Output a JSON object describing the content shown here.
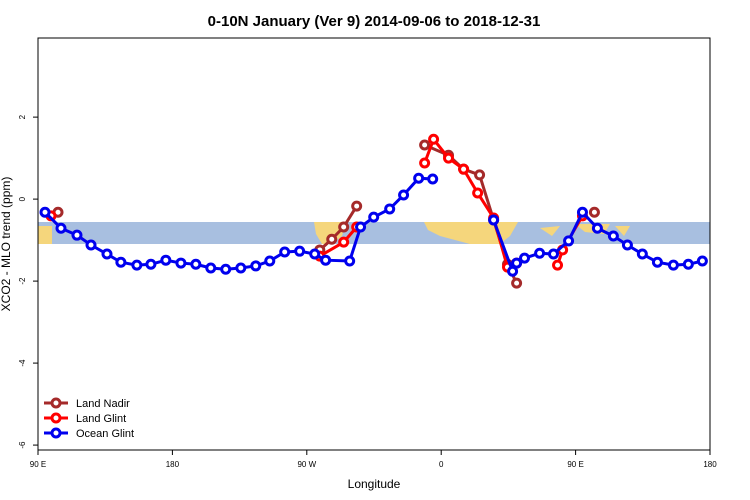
{
  "chart_data": {
    "type": "line",
    "title": "0-10N January (Ver 9)   2014-09-06 to 2018-12-31",
    "x_label": "Longitude",
    "y_label": "XCO2 - MLO trend (ppm)",
    "xlim": [
      90,
      540
    ],
    "ylim": [
      -6.12,
      3.93
    ],
    "xticks": [
      {
        "value": 90,
        "label": "90 E"
      },
      180,
      {
        "value": 270,
        "label": "90 W"
      },
      {
        "value": 360,
        "label": "0"
      },
      {
        "value": 450,
        "label": "90 E"
      },
      {
        "value": 540,
        "label": "180"
      }
    ],
    "yticks": [
      -6,
      -4,
      -2,
      0,
      2
    ],
    "legend": "bottom-left",
    "series": [
      {
        "name": "Land Nadir",
        "color": "#a52a2a",
        "x": [
          103.4,
          null,
          278.7,
          286.7,
          294.7,
          303.4,
          null,
          348.9,
          364.9,
          375,
          385.7,
          395.1,
          404.4,
          410.5,
          null,
          462.6
        ],
        "values": [
          -0.32,
          null,
          -1.24,
          -0.98,
          -0.68,
          -0.17,
          null,
          1.32,
          1.07,
          0.73,
          0.59,
          -0.51,
          -1.59,
          -2.05,
          null,
          -0.32
        ]
      },
      {
        "name": "Land Glint",
        "color": "#ff0000",
        "x": [
          98.7,
          null,
          278.7,
          294.7,
          303.4,
          null,
          348.9,
          354.9,
          364.9,
          375,
          384.4,
          395.1,
          404.4,
          410.5,
          null,
          437.9,
          441.3,
          454.6
        ],
        "values": [
          -0.41,
          null,
          -1.39,
          -1.05,
          -0.68,
          null,
          0.88,
          1.46,
          1.0,
          0.73,
          0.15,
          -0.46,
          -1.66,
          -1.56,
          null,
          -1.61,
          -1.24,
          -0.41
        ]
      },
      {
        "name": "Ocean Glint",
        "color": "#0000ee",
        "x": [
          94.7,
          105.4,
          116.1,
          125.5,
          136.2,
          145.5,
          156.2,
          165.6,
          175.6,
          185.7,
          195.7,
          205.7,
          215.7,
          225.8,
          235.8,
          245.2,
          255.2,
          265.2,
          275.3,
          282.6,
          298.7,
          306,
          314.8,
          325.5,
          334.8,
          344.9,
          354.3,
          null,
          395.1,
          407.8,
          410.5,
          415.8,
          425.9,
          435.2,
          445.3,
          454.6,
          464.6,
          475.3,
          484.7,
          494.7,
          504.8,
          515.5,
          525.5,
          534.9
        ],
        "values": [
          -0.32,
          -0.71,
          -0.88,
          -1.12,
          -1.34,
          -1.54,
          -1.61,
          -1.59,
          -1.49,
          -1.56,
          -1.59,
          -1.68,
          -1.71,
          -1.68,
          -1.63,
          -1.51,
          -1.29,
          -1.27,
          -1.34,
          -1.49,
          -1.51,
          -0.68,
          -0.44,
          -0.24,
          0.1,
          0.51,
          0.49,
          null,
          -0.51,
          -1.76,
          -1.56,
          -1.44,
          -1.32,
          -1.34,
          -1.02,
          -0.32,
          -0.71,
          -0.9,
          -1.12,
          -1.34,
          -1.54,
          -1.61,
          -1.59,
          -1.51
        ]
      }
    ]
  }
}
